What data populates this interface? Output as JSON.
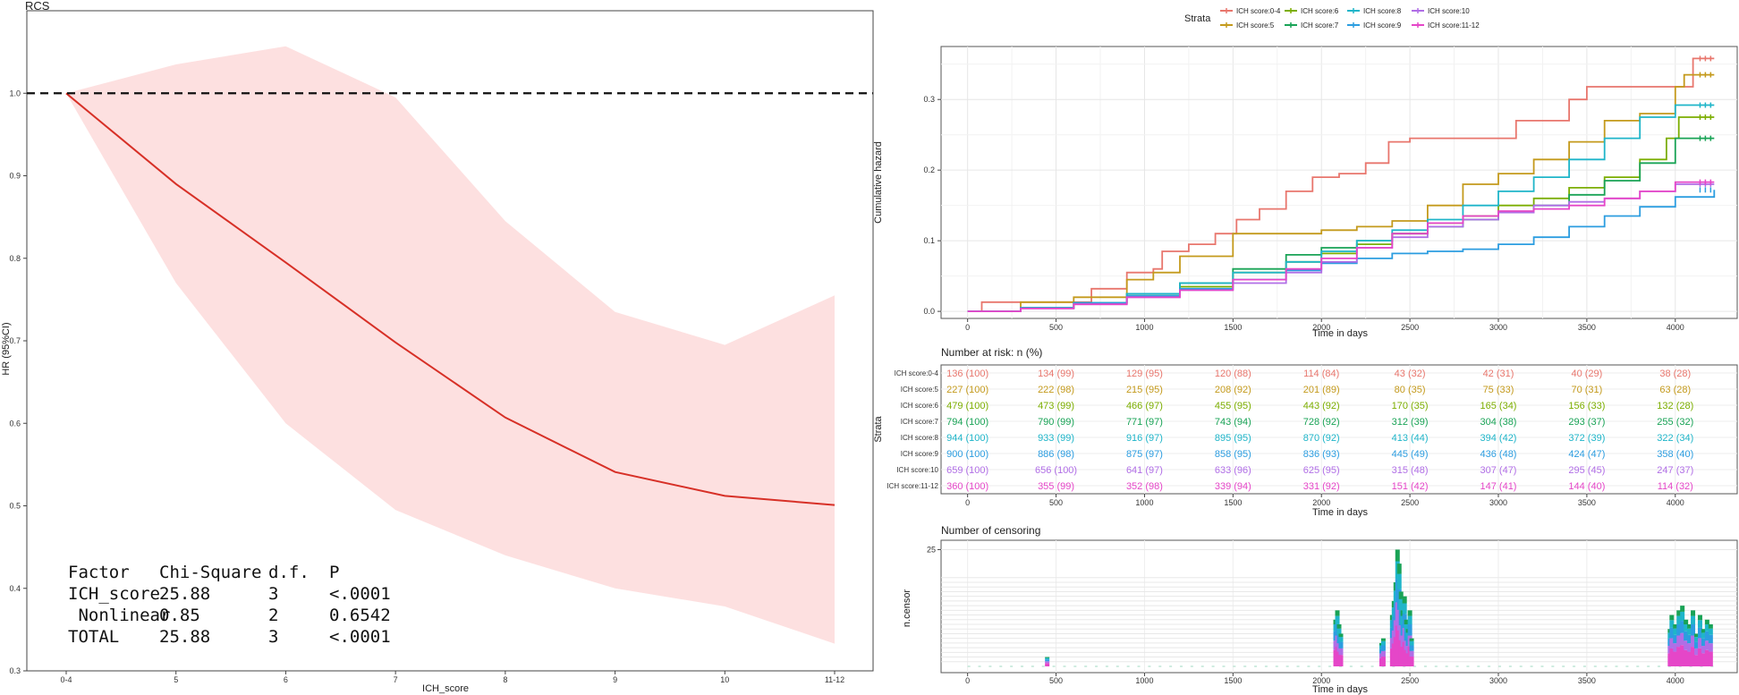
{
  "chart_data": [
    {
      "type": "line",
      "title": "RCS",
      "xlabel": "ICH_score",
      "ylabel": "HR (95%CI)",
      "categories": [
        "0-4",
        "5",
        "6",
        "7",
        "8",
        "9",
        "10",
        "11-12"
      ],
      "ylim": [
        0.3,
        1.1
      ],
      "yticks": [
        0.3,
        0.4,
        0.5,
        0.6,
        0.7,
        0.8,
        0.9,
        1.0
      ],
      "reference_line": 1.0,
      "line_color": "#d73027",
      "band_color": "#fde0e0",
      "series": [
        {
          "values": [
            1.0,
            0.89,
            0.795,
            0.698,
            0.607,
            0.541,
            0.512,
            0.501
          ]
        },
        {
          "values": [
            1.0,
            1.035,
            1.057,
            0.995,
            0.845,
            0.735,
            0.695,
            0.755
          ]
        },
        {
          "values": [
            1.0,
            0.77,
            0.6,
            0.495,
            0.44,
            0.4,
            0.378,
            0.333
          ]
        }
      ],
      "anova_table": {
        "header": [
          "Factor",
          "Chi-Square",
          "d.f.",
          "P"
        ],
        "rows": [
          [
            "ICH_score",
            "25.88",
            "3",
            "<.0001"
          ],
          [
            " Nonlinear",
            "0.85",
            "2",
            "0.6542"
          ],
          [
            "TOTAL",
            "25.88",
            "3",
            "<.0001"
          ]
        ]
      }
    },
    {
      "type": "line",
      "xlabel": "Time in days",
      "ylabel": "Cumulative hazard",
      "xlim": [
        -150,
        4350
      ],
      "ylim": [
        -0.01,
        0.375
      ],
      "xticks": [
        0,
        500,
        1000,
        1500,
        2000,
        2500,
        3000,
        3500,
        4000
      ],
      "yticks": [
        0.0,
        0.1,
        0.2,
        0.3
      ],
      "grid": true,
      "legend": {
        "title": "Strata",
        "position": "top",
        "entries": [
          "ICH score:0-4",
          "ICH score:5",
          "ICH score:6",
          "ICH score:7",
          "ICH score:8",
          "ICH score:9",
          "ICH score:10",
          "ICH score:11-12"
        ]
      },
      "series": [
        {
          "name": "ICH score:0-4",
          "color": "#e8766d",
          "x": [
            0,
            80,
            420,
            700,
            900,
            1050,
            1100,
            1250,
            1400,
            1520,
            1650,
            1800,
            1950,
            2100,
            2250,
            2380,
            2500,
            2750,
            3100,
            3400,
            3500,
            3800,
            4000,
            4100,
            4220
          ],
          "y": [
            0.0,
            0.013,
            0.013,
            0.032,
            0.055,
            0.06,
            0.085,
            0.095,
            0.11,
            0.13,
            0.145,
            0.17,
            0.19,
            0.195,
            0.21,
            0.24,
            0.245,
            0.245,
            0.27,
            0.3,
            0.318,
            0.318,
            0.318,
            0.358,
            0.358
          ]
        },
        {
          "name": "ICH score:5",
          "color": "#c49a1c",
          "x": [
            0,
            300,
            600,
            900,
            1050,
            1200,
            1500,
            1800,
            2000,
            2200,
            2400,
            2600,
            2800,
            3000,
            3200,
            3400,
            3600,
            3800,
            4000,
            4050,
            4220
          ],
          "y": [
            0.0,
            0.013,
            0.02,
            0.045,
            0.055,
            0.078,
            0.11,
            0.11,
            0.115,
            0.12,
            0.128,
            0.15,
            0.18,
            0.195,
            0.215,
            0.24,
            0.27,
            0.28,
            0.318,
            0.335,
            0.335
          ]
        },
        {
          "name": "ICH score:6",
          "color": "#7cae00",
          "x": [
            0,
            300,
            600,
            900,
            1200,
            1500,
            1800,
            2000,
            2200,
            2400,
            2600,
            2800,
            3000,
            3200,
            3400,
            3600,
            3800,
            3950,
            4020,
            4220
          ],
          "y": [
            0.0,
            0.005,
            0.012,
            0.025,
            0.035,
            0.055,
            0.07,
            0.082,
            0.095,
            0.11,
            0.125,
            0.135,
            0.15,
            0.16,
            0.175,
            0.19,
            0.215,
            0.245,
            0.275,
            0.275
          ]
        },
        {
          "name": "ICH score:7",
          "color": "#19a356",
          "x": [
            0,
            300,
            600,
            900,
            1200,
            1500,
            1800,
            2000,
            2200,
            2400,
            2600,
            2800,
            3000,
            3200,
            3400,
            3600,
            3800,
            4000,
            4220
          ],
          "y": [
            0.0,
            0.005,
            0.012,
            0.025,
            0.04,
            0.06,
            0.08,
            0.09,
            0.1,
            0.11,
            0.12,
            0.13,
            0.14,
            0.15,
            0.165,
            0.185,
            0.21,
            0.245,
            0.245
          ]
        },
        {
          "name": "ICH score:8",
          "color": "#1fb5c9",
          "x": [
            0,
            300,
            600,
            900,
            1200,
            1500,
            1800,
            2000,
            2200,
            2400,
            2600,
            2800,
            3000,
            3200,
            3400,
            3600,
            3800,
            4000,
            4220
          ],
          "y": [
            0.0,
            0.005,
            0.012,
            0.025,
            0.04,
            0.055,
            0.07,
            0.085,
            0.1,
            0.115,
            0.13,
            0.15,
            0.17,
            0.19,
            0.215,
            0.245,
            0.275,
            0.292,
            0.292
          ]
        },
        {
          "name": "ICH score:9",
          "color": "#2c9de0",
          "x": [
            0,
            300,
            600,
            900,
            1200,
            1500,
            1800,
            2000,
            2200,
            2400,
            2600,
            2800,
            3000,
            3200,
            3400,
            3600,
            3800,
            4000,
            4220
          ],
          "y": [
            0.0,
            0.005,
            0.012,
            0.022,
            0.032,
            0.045,
            0.058,
            0.068,
            0.075,
            0.082,
            0.085,
            0.088,
            0.095,
            0.105,
            0.12,
            0.135,
            0.148,
            0.162,
            0.172
          ]
        },
        {
          "name": "ICH score:10",
          "color": "#b06ee6",
          "x": [
            0,
            300,
            600,
            900,
            1200,
            1500,
            1800,
            2000,
            2200,
            2400,
            2600,
            2800,
            3000,
            3200,
            3400,
            3600,
            3800,
            4000,
            4220
          ],
          "y": [
            0.0,
            0.004,
            0.01,
            0.02,
            0.03,
            0.04,
            0.055,
            0.07,
            0.09,
            0.105,
            0.12,
            0.13,
            0.14,
            0.15,
            0.155,
            0.16,
            0.17,
            0.18,
            0.18
          ]
        },
        {
          "name": "ICH score:11-12",
          "color": "#e546c8",
          "x": [
            0,
            300,
            600,
            900,
            1200,
            1500,
            1800,
            2000,
            2200,
            2400,
            2600,
            2800,
            3000,
            3200,
            3400,
            3600,
            3800,
            4000,
            4220
          ],
          "y": [
            0.0,
            0.004,
            0.01,
            0.02,
            0.03,
            0.045,
            0.06,
            0.075,
            0.09,
            0.11,
            0.125,
            0.135,
            0.142,
            0.145,
            0.15,
            0.16,
            0.17,
            0.183,
            0.183
          ]
        }
      ]
    },
    {
      "type": "table",
      "title": "Number at risk: n (%)",
      "xlabel": "Time in days",
      "ylabel": "Strata",
      "xticks": [
        0,
        500,
        1000,
        1500,
        2000,
        2500,
        3000,
        3500,
        4000
      ],
      "rows": [
        {
          "label": "ICH score:0-4",
          "color": "#e8766d",
          "values": [
            "136 (100)",
            "134 (99)",
            "129 (95)",
            "120 (88)",
            "114 (84)",
            "43 (32)",
            "42 (31)",
            "40 (29)",
            "38 (28)"
          ]
        },
        {
          "label": "ICH score:5",
          "color": "#c49a1c",
          "values": [
            "227 (100)",
            "222 (98)",
            "215 (95)",
            "208 (92)",
            "201 (89)",
            "80 (35)",
            "75 (33)",
            "70 (31)",
            "63 (28)"
          ]
        },
        {
          "label": "ICH score:6",
          "color": "#7cae00",
          "values": [
            "479 (100)",
            "473 (99)",
            "466 (97)",
            "455 (95)",
            "443 (92)",
            "170 (35)",
            "165 (34)",
            "156 (33)",
            "132 (28)"
          ]
        },
        {
          "label": "ICH score:7",
          "color": "#19a356",
          "values": [
            "794 (100)",
            "790 (99)",
            "771 (97)",
            "743 (94)",
            "728 (92)",
            "312 (39)",
            "304 (38)",
            "293 (37)",
            "255 (32)"
          ]
        },
        {
          "label": "ICH score:8",
          "color": "#1fb5c9",
          "values": [
            "944 (100)",
            "933 (99)",
            "916 (97)",
            "895 (95)",
            "870 (92)",
            "413 (44)",
            "394 (42)",
            "372 (39)",
            "322 (34)"
          ]
        },
        {
          "label": "ICH score:9",
          "color": "#2c9de0",
          "values": [
            "900 (100)",
            "886 (98)",
            "875 (97)",
            "858 (95)",
            "836 (93)",
            "445 (49)",
            "436 (48)",
            "424 (47)",
            "358 (40)"
          ]
        },
        {
          "label": "ICH score:10",
          "color": "#b06ee6",
          "values": [
            "659 (100)",
            "656 (100)",
            "641 (97)",
            "633 (96)",
            "625 (95)",
            "315 (48)",
            "307 (47)",
            "295 (45)",
            "247 (37)"
          ]
        },
        {
          "label": "ICH score:11-12",
          "color": "#e546c8",
          "values": [
            "360 (100)",
            "355 (99)",
            "352 (98)",
            "339 (94)",
            "331 (92)",
            "151 (42)",
            "147 (41)",
            "144 (40)",
            "114 (32)"
          ]
        }
      ]
    },
    {
      "type": "bar",
      "title": "Number of censoring",
      "xlabel": "Time in days",
      "ylabel": "n.censor",
      "xticks": [
        0,
        500,
        1000,
        1500,
        2000,
        2500,
        3000,
        3500,
        4000
      ],
      "yticks": [
        25
      ],
      "ylim": [
        0,
        27
      ],
      "x": [
        450,
        2080,
        2090,
        2100,
        2110,
        2340,
        2350,
        2400,
        2410,
        2420,
        2430,
        2440,
        2450,
        2460,
        2470,
        2480,
        2490,
        2500,
        2510,
        3970,
        3980,
        4000,
        4020,
        4040,
        4060,
        4080,
        4100,
        4120,
        4140,
        4160,
        4180,
        4200
      ],
      "values": [
        2,
        10,
        12,
        9,
        7,
        5,
        6,
        11,
        14,
        18,
        25,
        22,
        16,
        12,
        15,
        10,
        8,
        12,
        6,
        8,
        11,
        9,
        12,
        13,
        10,
        9,
        12,
        7,
        11,
        8,
        10,
        9
      ]
    }
  ]
}
